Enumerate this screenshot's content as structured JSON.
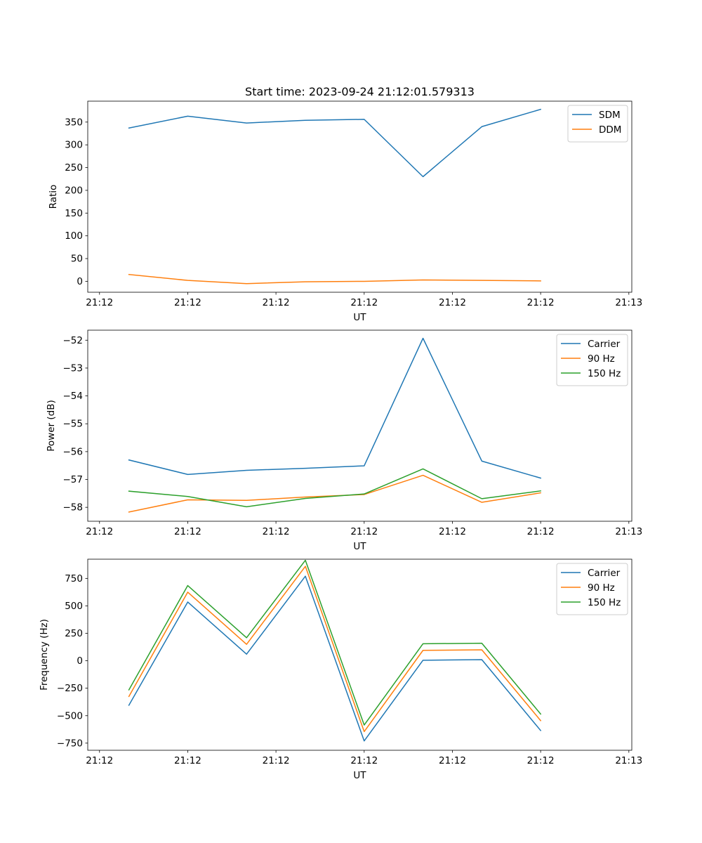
{
  "title": "Start time: 2023-09-24 21:12:01.579313",
  "colors": {
    "blue": "#1f77b4",
    "orange": "#ff7f0e",
    "green": "#2ca02c"
  },
  "x_tick_labels": [
    "21:12",
    "21:12",
    "21:12",
    "21:12",
    "21:12",
    "21:12",
    "21:13"
  ],
  "chart_data": [
    {
      "type": "line",
      "title": "Start time: 2023-09-24 21:12:01.579313",
      "xlabel": "UT",
      "ylabel": "Ratio",
      "x": [
        1,
        2,
        3,
        4,
        5,
        6,
        7,
        8
      ],
      "xlim": [
        0.3,
        9.55
      ],
      "xticks": [
        0.5,
        2,
        3.5,
        5,
        6.5,
        8,
        9.5
      ],
      "ylim": [
        -24,
        396
      ],
      "yticks": [
        0,
        50,
        100,
        150,
        200,
        250,
        300,
        350
      ],
      "legend": "top-right",
      "series": [
        {
          "name": "SDM",
          "color": "#1f77b4",
          "values": [
            337,
            363,
            348,
            354,
            356,
            230,
            340,
            378
          ]
        },
        {
          "name": "DDM",
          "color": "#ff7f0e",
          "values": [
            15,
            2,
            -5,
            -1,
            0,
            3,
            2,
            1
          ]
        }
      ]
    },
    {
      "type": "line",
      "title": "",
      "xlabel": "UT",
      "ylabel": "Power (dB)",
      "x": [
        1,
        2,
        3,
        4,
        5,
        6,
        7,
        8
      ],
      "xlim": [
        0.3,
        9.55
      ],
      "xticks": [
        0.5,
        2,
        3.5,
        5,
        6.5,
        8,
        9.5
      ],
      "ylim": [
        -58.5,
        -51.64
      ],
      "yticks": [
        -58,
        -57,
        -56,
        -55,
        -54,
        -53,
        -52
      ],
      "legend": "top-right",
      "series": [
        {
          "name": "Carrier",
          "color": "#1f77b4",
          "values": [
            -56.3,
            -56.82,
            -56.67,
            -56.6,
            -56.51,
            -51.93,
            -56.34,
            -56.95
          ]
        },
        {
          "name": "90 Hz",
          "color": "#ff7f0e",
          "values": [
            -58.17,
            -57.73,
            -57.75,
            -57.63,
            -57.54,
            -56.85,
            -57.82,
            -57.48
          ]
        },
        {
          "name": "150 Hz",
          "color": "#2ca02c",
          "values": [
            -57.42,
            -57.61,
            -57.98,
            -57.68,
            -57.52,
            -56.62,
            -57.69,
            -57.41
          ]
        }
      ]
    },
    {
      "type": "line",
      "title": "",
      "xlabel": "UT",
      "ylabel": "Frequency (Hz)",
      "x": [
        1,
        2,
        3,
        4,
        5,
        6,
        7,
        8
      ],
      "xlim": [
        0.3,
        9.55
      ],
      "xticks": [
        0.5,
        2,
        3.5,
        5,
        6.5,
        8,
        9.5
      ],
      "ylim": [
        -815,
        925
      ],
      "yticks": [
        -750,
        -500,
        -250,
        0,
        250,
        500,
        750
      ],
      "legend": "top-right",
      "series": [
        {
          "name": "Carrier",
          "color": "#1f77b4",
          "values": [
            -405,
            535,
            60,
            770,
            -730,
            5,
            10,
            -635
          ]
        },
        {
          "name": "90 Hz",
          "color": "#ff7f0e",
          "values": [
            -325,
            625,
            150,
            860,
            -645,
            95,
            100,
            -545
          ]
        },
        {
          "name": "150 Hz",
          "color": "#2ca02c",
          "values": [
            -265,
            685,
            210,
            915,
            -585,
            155,
            160,
            -485
          ]
        }
      ]
    }
  ]
}
